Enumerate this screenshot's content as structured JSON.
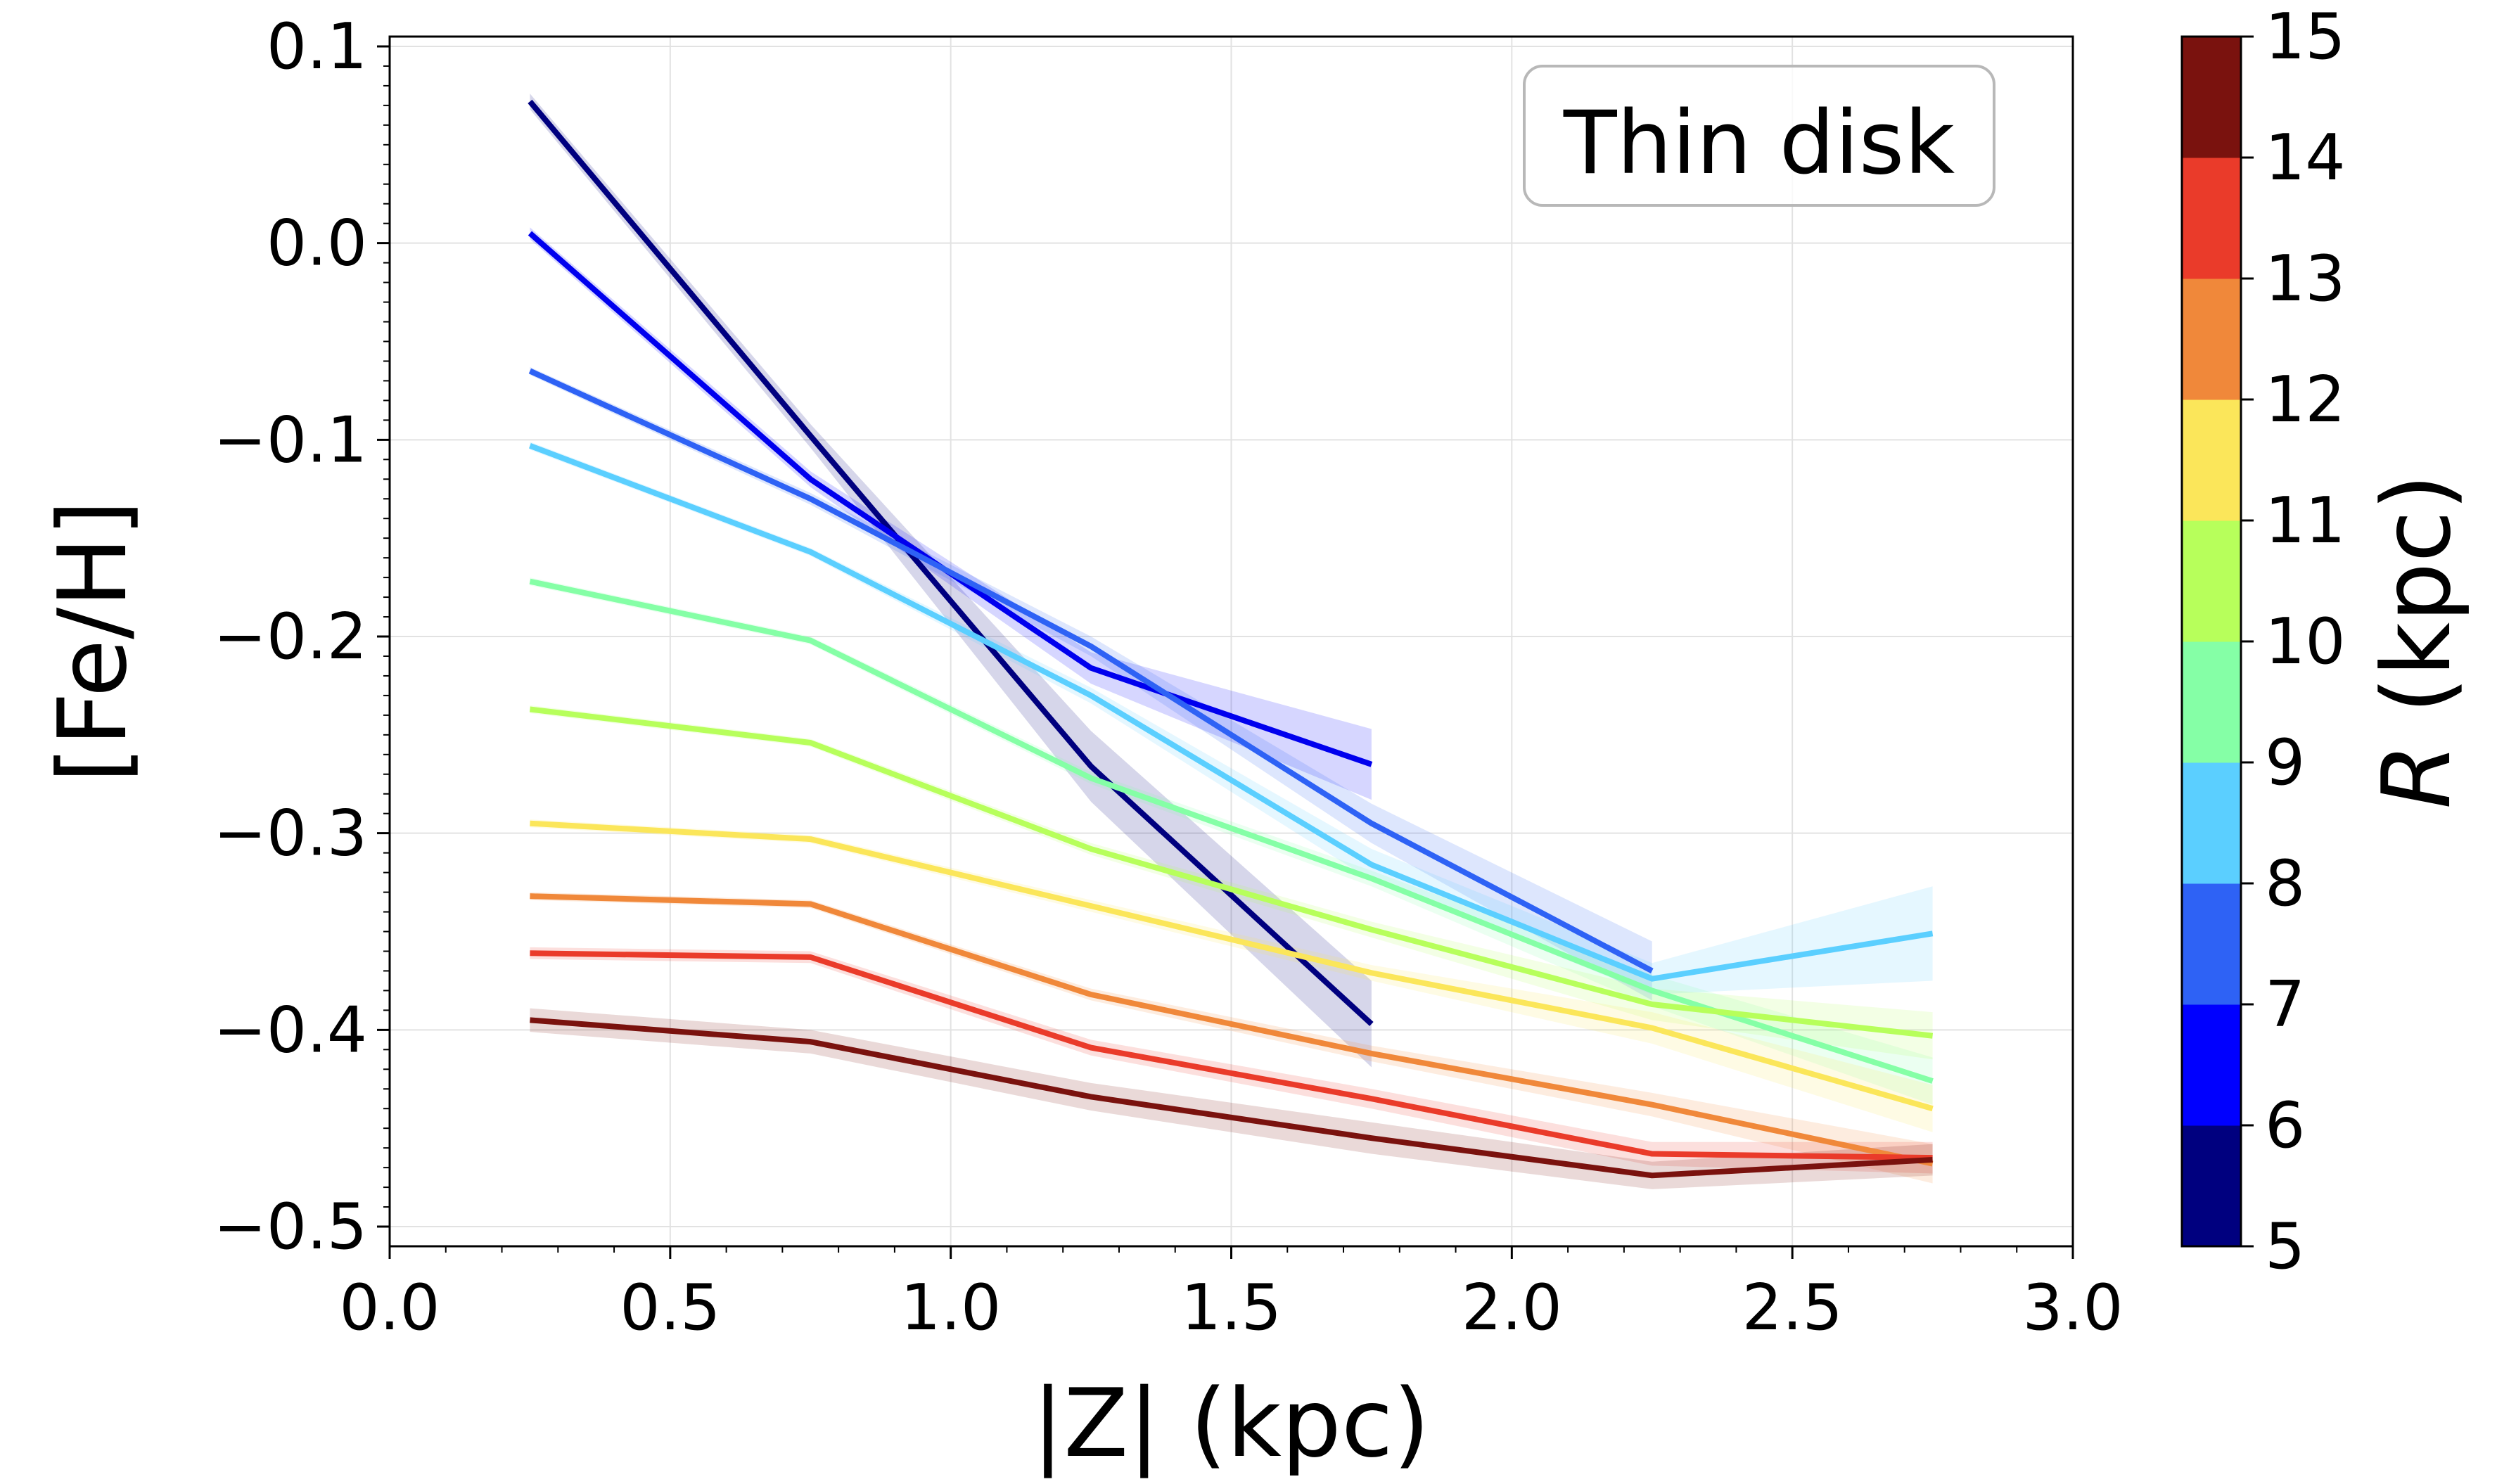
{
  "chart_data": {
    "type": "line",
    "title": "",
    "annotation": "Thin disk",
    "xlabel": "|Z| (kpc)",
    "ylabel": "[Fe/H]",
    "xlim": [
      0.0,
      3.0
    ],
    "ylim": [
      -0.51,
      0.105
    ],
    "x_ticks": [
      "0.0",
      "0.5",
      "1.0",
      "1.5",
      "2.0",
      "2.5",
      "3.0"
    ],
    "y_ticks": [
      "0.1",
      "0.0",
      "−0.1",
      "−0.2",
      "−0.3",
      "−0.4",
      "−0.5"
    ],
    "grid": true,
    "colorbar": {
      "label_italic": "R",
      "label_rest": " (kpc)",
      "range": [
        5,
        15
      ],
      "ticks": [
        "5",
        "6",
        "7",
        "8",
        "9",
        "10",
        "11",
        "12",
        "13",
        "14",
        "15"
      ],
      "colors": [
        "#00007f",
        "#0000ff",
        "#2e62f5",
        "#5bcfff",
        "#85ffa6",
        "#b7ff5b",
        "#fbe65a",
        "#f0883a",
        "#ea3b2a",
        "#7a120e"
      ]
    },
    "series": [
      {
        "name": "R 5-6 kpc",
        "color": "#00007f",
        "fill": "#00007f",
        "x": [
          0.25,
          0.75,
          1.25,
          1.75
        ],
        "y": [
          0.072,
          -0.098,
          -0.266,
          -0.397
        ],
        "err": [
          0.004,
          0.006,
          0.018,
          0.022
        ]
      },
      {
        "name": "R 6-7 kpc",
        "color": "#0000ee",
        "fill": "#0000ff",
        "x": [
          0.25,
          0.75,
          1.25,
          1.75
        ],
        "y": [
          0.005,
          -0.12,
          -0.216,
          -0.265
        ],
        "err": [
          0.003,
          0.004,
          0.008,
          0.018
        ]
      },
      {
        "name": "R 7-8 kpc",
        "color": "#2e62f5",
        "fill": "#2e62f5",
        "x": [
          0.25,
          0.75,
          1.25,
          1.75,
          2.25
        ],
        "y": [
          -0.065,
          -0.13,
          -0.205,
          -0.295,
          -0.37
        ],
        "err": [
          0.002,
          0.003,
          0.005,
          0.01,
          0.015
        ]
      },
      {
        "name": "R 8-9 kpc",
        "color": "#5bcfff",
        "fill": "#5bcfff",
        "x": [
          0.25,
          0.75,
          1.25,
          1.75,
          2.25,
          2.75
        ],
        "y": [
          -0.103,
          -0.157,
          -0.23,
          -0.316,
          -0.374,
          -0.351
        ],
        "err": [
          0.002,
          0.002,
          0.004,
          0.008,
          0.008,
          0.024
        ]
      },
      {
        "name": "R 9-10 kpc",
        "color": "#85ffa6",
        "fill": "#85ffa6",
        "x": [
          0.25,
          0.75,
          1.25,
          1.75,
          2.25,
          2.75
        ],
        "y": [
          -0.172,
          -0.202,
          -0.272,
          -0.323,
          -0.38,
          -0.426
        ],
        "err": [
          0.002,
          0.002,
          0.003,
          0.004,
          0.008,
          0.012
        ]
      },
      {
        "name": "R 10-11 kpc",
        "color": "#b7ff5b",
        "fill": "#b7ff5b",
        "x": [
          0.25,
          0.75,
          1.25,
          1.75,
          2.25,
          2.75
        ],
        "y": [
          -0.237,
          -0.254,
          -0.308,
          -0.349,
          -0.387,
          -0.403
        ],
        "err": [
          0.002,
          0.002,
          0.003,
          0.004,
          0.008,
          0.012
        ]
      },
      {
        "name": "R 11-12 kpc",
        "color": "#fbe65a",
        "fill": "#fbe65a",
        "x": [
          0.25,
          0.75,
          1.25,
          1.75,
          2.25,
          2.75
        ],
        "y": [
          -0.295,
          -0.303,
          -0.337,
          -0.371,
          -0.399,
          -0.44
        ],
        "err": [
          0.002,
          0.002,
          0.003,
          0.004,
          0.008,
          0.012
        ]
      },
      {
        "name": "R 12-13 kpc",
        "color": "#f0883a",
        "fill": "#f0883a",
        "x": [
          0.25,
          0.75,
          1.25,
          1.75,
          2.25,
          2.75
        ],
        "y": [
          -0.332,
          -0.336,
          -0.382,
          -0.412,
          -0.438,
          -0.468
        ],
        "err": [
          0.002,
          0.002,
          0.003,
          0.004,
          0.006,
          0.01
        ]
      },
      {
        "name": "R 13-14 kpc",
        "color": "#ea3b2a",
        "fill": "#ea3b2a",
        "x": [
          0.25,
          0.75,
          1.25,
          1.75,
          2.25,
          2.75
        ],
        "y": [
          -0.361,
          -0.363,
          -0.409,
          -0.435,
          -0.463,
          -0.465
        ],
        "err": [
          0.003,
          0.003,
          0.004,
          0.005,
          0.006,
          0.008
        ]
      },
      {
        "name": "R 14-15 kpc",
        "color": "#7a120e",
        "fill": "#7a120e",
        "x": [
          0.25,
          0.75,
          1.25,
          1.75,
          2.25,
          2.75
        ],
        "y": [
          -0.395,
          -0.406,
          -0.434,
          -0.455,
          -0.474,
          -0.466
        ],
        "err": [
          0.006,
          0.006,
          0.007,
          0.008,
          0.007,
          0.008
        ]
      }
    ]
  }
}
